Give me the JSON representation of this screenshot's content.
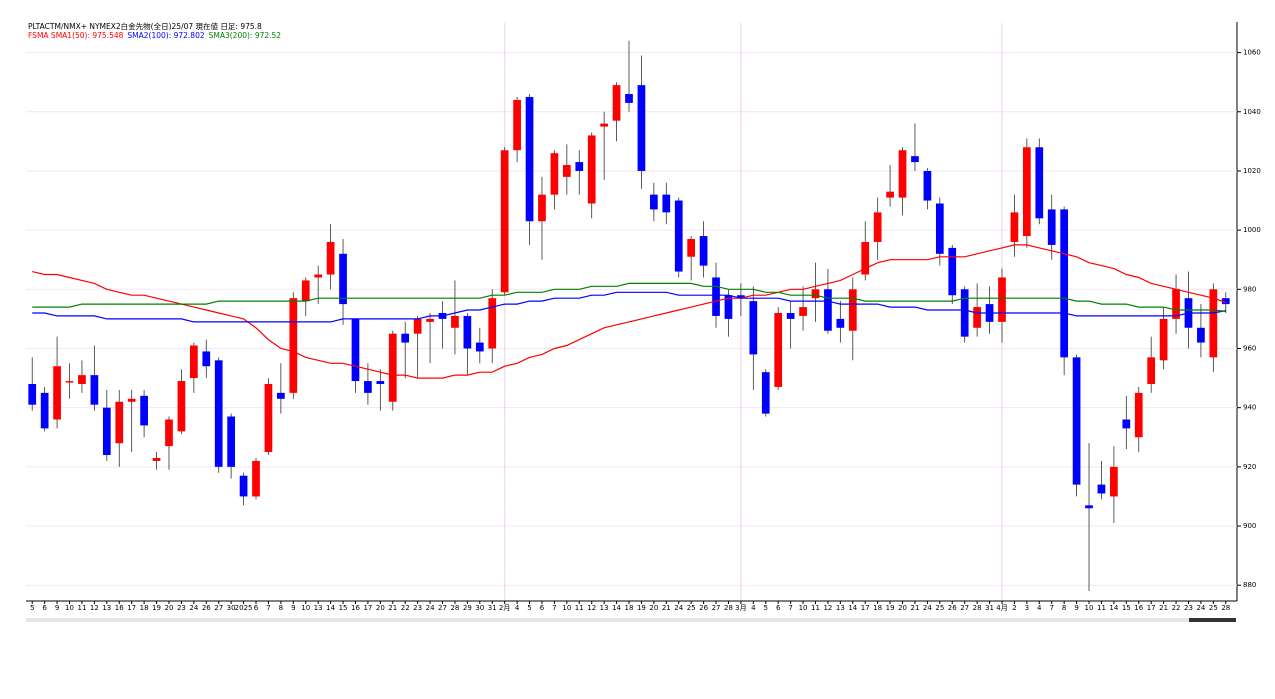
{
  "chart_data": {
    "type": "candlestick",
    "title": "PLTACTM/NMX+ NYMEX2白金先物(全日)25/07  現在値 日足: 975.8",
    "legend": [
      {
        "text": "FSMA SMA1(50): 975.548",
        "color": "#ff0000"
      },
      {
        "text": "SMA2(100): 972.802",
        "color": "#0000ff"
      },
      {
        "text": "SMA3(200): 972.52",
        "color": "#008000"
      }
    ],
    "up_color": "#ff0000",
    "down_color": "#0000ff",
    "ylim": [
      875,
      1070
    ],
    "yticks": [
      880,
      900,
      920,
      940,
      960,
      980,
      1000,
      1020,
      1040,
      1060
    ],
    "grid": true,
    "categories": [
      "5",
      "6",
      "9",
      "10",
      "11",
      "12",
      "13",
      "16",
      "17",
      "18",
      "19",
      "20",
      "23",
      "24",
      "26",
      "27",
      "30",
      "2025",
      "6",
      "7",
      "8",
      "9",
      "10",
      "13",
      "14",
      "15",
      "16",
      "17",
      "20",
      "21",
      "22",
      "23",
      "24",
      "27",
      "28",
      "29",
      "30",
      "31",
      "2月",
      "4",
      "5",
      "6",
      "7",
      "10",
      "11",
      "12",
      "13",
      "14",
      "18",
      "19",
      "20",
      "21",
      "24",
      "25",
      "26",
      "27",
      "28",
      "3月",
      "4",
      "5",
      "6",
      "7",
      "10",
      "11",
      "12",
      "13",
      "14",
      "17",
      "18",
      "19",
      "20",
      "21",
      "24",
      "25",
      "26",
      "27",
      "28",
      "31",
      "4月",
      "2",
      "3",
      "4",
      "7",
      "8",
      "9",
      "10",
      "11",
      "14",
      "15",
      "16",
      "17",
      "21",
      "22",
      "23",
      "24",
      "25",
      "28"
    ],
    "open": [
      948,
      945,
      936,
      949,
      948,
      951,
      940,
      928,
      942,
      944,
      922,
      927,
      932,
      950,
      959,
      956,
      937,
      917,
      910,
      925,
      945,
      945,
      976,
      984,
      985,
      992,
      970,
      949,
      949,
      942,
      965,
      965,
      969,
      972,
      967,
      971,
      962,
      960,
      979,
      1027,
      1045,
      1003,
      1012,
      1018,
      1023,
      1009,
      1035,
      1037,
      1046,
      1049,
      1012,
      1012,
      1010,
      991,
      998,
      984,
      978,
      978,
      976,
      952,
      947,
      972,
      971,
      977,
      980,
      970,
      966,
      985,
      996,
      1011,
      1011,
      1025,
      1020,
      1009,
      994,
      980,
      967,
      975,
      969,
      996,
      998,
      1028,
      1007,
      1007,
      957,
      907,
      914,
      910,
      936,
      930,
      948,
      956,
      970,
      977,
      967,
      957,
      977
    ],
    "high": [
      957,
      947,
      964,
      955,
      956,
      961,
      946,
      946,
      946,
      946,
      925,
      937,
      953,
      962,
      963,
      957,
      938,
      918,
      923,
      950,
      955,
      979,
      984,
      988,
      1002,
      997,
      970,
      955,
      953,
      966,
      969,
      971,
      972,
      976,
      983,
      972,
      967,
      980,
      1028,
      1045,
      1046,
      1018,
      1027,
      1029,
      1027,
      1033,
      1040,
      1050,
      1064,
      1059,
      1016,
      1016,
      1011,
      998,
      1003,
      989,
      980,
      982,
      981,
      953,
      974,
      976,
      981,
      989,
      987,
      976,
      984,
      1003,
      1011,
      1022,
      1028,
      1036,
      1021,
      1011,
      995,
      981,
      982,
      981,
      987,
      1012,
      1031,
      1031,
      1012,
      1008,
      958,
      928,
      922,
      927,
      944,
      947,
      964,
      974,
      985,
      986,
      975,
      982,
      979
    ],
    "low": [
      939,
      932,
      933,
      943,
      945,
      939,
      922,
      920,
      925,
      930,
      919,
      919,
      931,
      945,
      950,
      918,
      916,
      907,
      909,
      924,
      938,
      943,
      971,
      975,
      980,
      968,
      945,
      941,
      939,
      939,
      950,
      950,
      955,
      960,
      958,
      951,
      955,
      955,
      978,
      1023,
      995,
      990,
      1007,
      1012,
      1012,
      1004,
      1017,
      1030,
      1040,
      1014,
      1003,
      1002,
      984,
      983,
      984,
      967,
      964,
      971,
      946,
      937,
      946,
      960,
      966,
      969,
      965,
      962,
      956,
      983,
      990,
      1008,
      1005,
      1020,
      1007,
      988,
      975,
      962,
      964,
      965,
      962,
      991,
      994,
      1002,
      990,
      951,
      910,
      878,
      909,
      901,
      926,
      925,
      945,
      953,
      965,
      960,
      957,
      952,
      972
    ],
    "close": [
      941,
      933,
      954,
      949,
      951,
      941,
      924,
      942,
      943,
      934,
      923,
      936,
      949,
      961,
      954,
      920,
      920,
      910,
      922,
      948,
      943,
      977,
      983,
      985,
      996,
      975,
      949,
      945,
      948,
      965,
      962,
      970,
      970,
      970,
      971,
      960,
      959,
      977,
      1027,
      1044,
      1003,
      1012,
      1026,
      1022,
      1020,
      1032,
      1036,
      1049,
      1043,
      1020,
      1007,
      1006,
      986,
      997,
      988,
      971,
      970,
      977,
      958,
      938,
      972,
      970,
      974,
      980,
      966,
      967,
      980,
      996,
      1006,
      1013,
      1027,
      1023,
      1010,
      992,
      978,
      964,
      974,
      969,
      984,
      1006,
      1028,
      1004,
      995,
      957,
      914,
      906,
      911,
      920,
      933,
      945,
      957,
      970,
      980,
      967,
      962,
      980,
      975
    ],
    "series": [
      {
        "name": "SMA1(50)",
        "color": "#ff0000",
        "values": [
          986,
          985,
          985,
          984,
          983,
          982,
          980,
          979,
          978,
          978,
          977,
          976,
          975,
          974,
          973,
          972,
          971,
          970,
          967,
          963,
          960,
          959,
          957,
          956,
          955,
          955,
          954,
          953,
          952,
          951,
          951,
          950,
          950,
          950,
          951,
          951,
          952,
          952,
          954,
          955,
          957,
          958,
          960,
          961,
          963,
          965,
          967,
          968,
          969,
          970,
          971,
          972,
          973,
          974,
          975,
          976,
          977,
          977,
          978,
          978,
          979,
          980,
          980,
          981,
          982,
          983,
          985,
          987,
          989,
          990,
          990,
          990,
          990,
          991,
          991,
          991,
          992,
          993,
          994,
          995,
          995,
          994,
          993,
          992,
          991,
          989,
          988,
          987,
          985,
          984,
          982,
          981,
          980,
          979,
          978,
          977,
          975.548
        ]
      },
      {
        "name": "SMA2(100)",
        "color": "#0000ff",
        "values": [
          972,
          972,
          971,
          971,
          971,
          971,
          970,
          970,
          970,
          970,
          970,
          970,
          970,
          969,
          969,
          969,
          969,
          969,
          969,
          969,
          969,
          969,
          969,
          969,
          969,
          970,
          970,
          970,
          970,
          970,
          970,
          970,
          971,
          971,
          972,
          973,
          973,
          974,
          975,
          975,
          976,
          976,
          977,
          977,
          977,
          978,
          978,
          979,
          979,
          979,
          979,
          979,
          978,
          978,
          978,
          978,
          978,
          977,
          977,
          977,
          977,
          976,
          976,
          976,
          976,
          975,
          975,
          975,
          975,
          974,
          974,
          974,
          973,
          973,
          973,
          973,
          972,
          972,
          972,
          972,
          972,
          972,
          972,
          972,
          971,
          971,
          971,
          971,
          971,
          971,
          971,
          971,
          971,
          972,
          972,
          972,
          972.802
        ]
      },
      {
        "name": "SMA3(200)",
        "color": "#008000",
        "values": [
          974,
          974,
          974,
          974,
          975,
          975,
          975,
          975,
          975,
          975,
          975,
          975,
          975,
          975,
          975,
          976,
          976,
          976,
          976,
          976,
          976,
          976,
          976,
          977,
          977,
          977,
          977,
          977,
          977,
          977,
          977,
          977,
          977,
          977,
          977,
          977,
          977,
          978,
          978,
          979,
          979,
          979,
          980,
          980,
          980,
          981,
          981,
          981,
          982,
          982,
          982,
          982,
          982,
          982,
          981,
          981,
          980,
          980,
          980,
          979,
          979,
          978,
          978,
          978,
          977,
          977,
          977,
          976,
          976,
          976,
          976,
          976,
          976,
          976,
          976,
          977,
          977,
          977,
          977,
          977,
          977,
          977,
          977,
          977,
          976,
          976,
          975,
          975,
          975,
          974,
          974,
          974,
          973,
          973,
          973,
          973,
          972.52
        ]
      }
    ]
  }
}
